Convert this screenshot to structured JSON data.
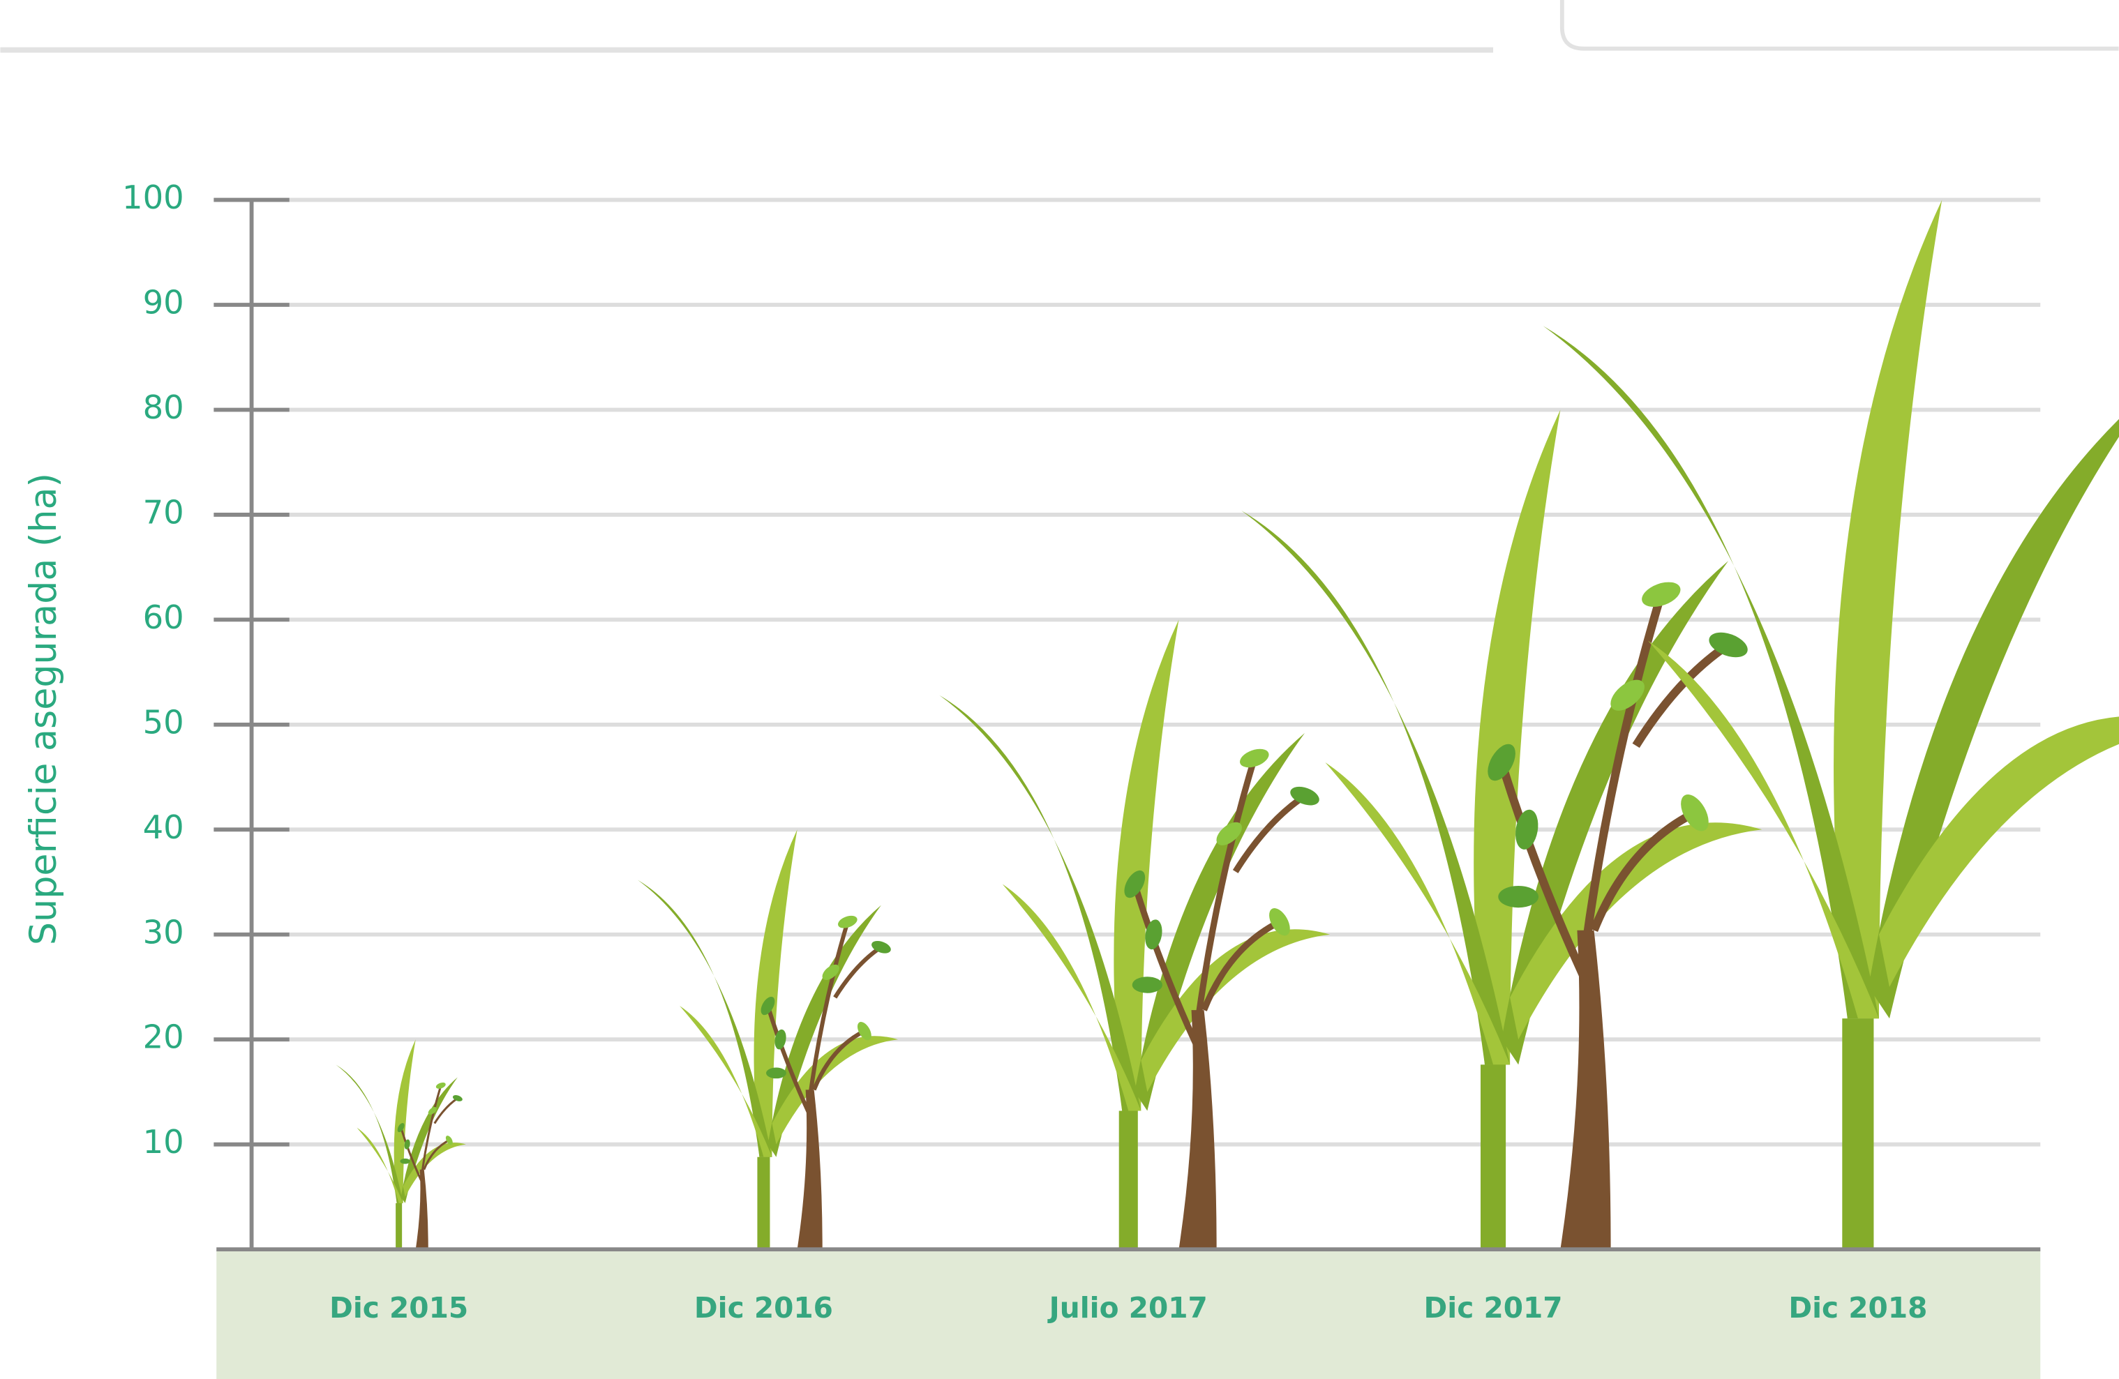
{
  "chart_data": {
    "type": "plant",
    "y_label": "Superficie asegurada (ha)",
    "categories": [
      "Dic 2015",
      "Dic 2016",
      "Julio 2017",
      "Dic 2017",
      "Dic 2018"
    ],
    "values": [
      20,
      40,
      60,
      80,
      100
    ],
    "color": "#84ac2a",
    "ylim": [
      0,
      100
    ],
    "yticks": [
      10,
      20,
      30,
      40,
      50,
      60,
      70,
      80,
      90,
      100
    ],
    "grid": true
  }
}
